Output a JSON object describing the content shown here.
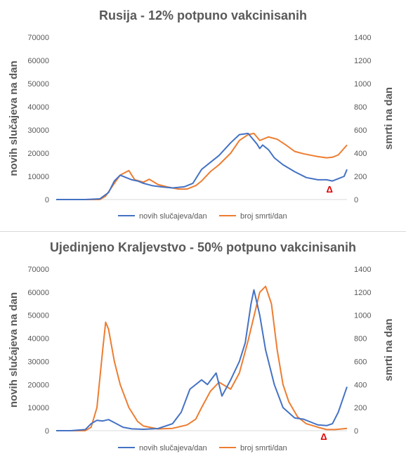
{
  "colors": {
    "cases": "#4472c4",
    "deaths": "#ed7d31",
    "marker": "#e00000",
    "text": "#595959"
  },
  "chart_data": [
    {
      "type": "line",
      "title": "Rusija - 12% potpuno vakcinisanih",
      "ylabel": "novih slučajeva na dan",
      "y2label": "smrti na dan",
      "ylim": [
        0,
        70000
      ],
      "y2lim": [
        0,
        1400
      ],
      "yticks": [
        "0",
        "10000",
        "20000",
        "30000",
        "40000",
        "50000",
        "60000",
        "70000"
      ],
      "y2ticks": [
        "0",
        "200",
        "400",
        "600",
        "800",
        "1000",
        "1200",
        "1400"
      ],
      "marker": "Δ",
      "legend": [
        "novih slučajeva/dan",
        "broj smrti/dan"
      ],
      "legend_position": "bottom",
      "series": [
        {
          "name": "novih slučajeva/dan",
          "axis": "left",
          "x": [
            0,
            0.05,
            0.1,
            0.15,
            0.18,
            0.2,
            0.22,
            0.24,
            0.26,
            0.28,
            0.3,
            0.33,
            0.36,
            0.4,
            0.44,
            0.47,
            0.5,
            0.53,
            0.56,
            0.6,
            0.63,
            0.66,
            0.69,
            0.7,
            0.71,
            0.73,
            0.75,
            0.78,
            0.82,
            0.86,
            0.9,
            0.93,
            0.95,
            0.97,
            0.99,
            1.0
          ],
          "y": [
            0,
            0,
            0,
            300,
            3000,
            8000,
            10500,
            9500,
            8500,
            8000,
            7000,
            6000,
            5500,
            5000,
            5500,
            7000,
            13000,
            16000,
            19000,
            24500,
            28000,
            28500,
            24000,
            22000,
            23500,
            21500,
            18000,
            15000,
            12000,
            9500,
            8500,
            8500,
            8000,
            9000,
            10000,
            13000
          ]
        },
        {
          "name": "broj smrti/dan",
          "axis": "right",
          "x": [
            0,
            0.05,
            0.1,
            0.15,
            0.17,
            0.2,
            0.22,
            0.25,
            0.27,
            0.3,
            0.32,
            0.35,
            0.38,
            0.42,
            0.45,
            0.48,
            0.5,
            0.53,
            0.56,
            0.6,
            0.63,
            0.66,
            0.68,
            0.7,
            0.73,
            0.76,
            0.79,
            0.82,
            0.85,
            0.88,
            0.9,
            0.93,
            0.95,
            0.97,
            1.0
          ],
          "y": [
            0,
            0,
            0,
            0,
            30,
            140,
            210,
            250,
            170,
            150,
            175,
            130,
            110,
            90,
            90,
            120,
            160,
            240,
            300,
            400,
            510,
            560,
            570,
            510,
            540,
            520,
            470,
            415,
            395,
            380,
            370,
            360,
            365,
            385,
            470
          ]
        }
      ]
    },
    {
      "type": "line",
      "title": "Ujedinjeno Kraljevstvo - 50% potpuno vakcinisanih",
      "ylabel": "novih slučajeva na dan",
      "y2label": "smrti na dan",
      "ylim": [
        0,
        70000
      ],
      "y2lim": [
        0,
        1400
      ],
      "yticks": [
        "0",
        "10000",
        "20000",
        "30000",
        "40000",
        "50000",
        "60000",
        "70000"
      ],
      "y2ticks": [
        "0",
        "200",
        "400",
        "600",
        "800",
        "1000",
        "1200",
        "1400"
      ],
      "marker": "Δ",
      "legend": [
        "novih slučajeva/dan",
        "broj smrti/dan"
      ],
      "legend_position": "bottom",
      "series": [
        {
          "name": "novih slučajeva/dan",
          "axis": "left",
          "x": [
            0,
            0.05,
            0.1,
            0.12,
            0.14,
            0.16,
            0.18,
            0.2,
            0.23,
            0.26,
            0.3,
            0.35,
            0.4,
            0.43,
            0.46,
            0.5,
            0.52,
            0.55,
            0.57,
            0.6,
            0.63,
            0.65,
            0.67,
            0.68,
            0.7,
            0.72,
            0.75,
            0.78,
            0.82,
            0.85,
            0.88,
            0.9,
            0.93,
            0.95,
            0.97,
            1.0
          ],
          "y": [
            0,
            0,
            500,
            3000,
            4500,
            4200,
            4800,
            3500,
            1500,
            800,
            600,
            900,
            3000,
            8000,
            18000,
            22000,
            20000,
            25000,
            15000,
            22000,
            30000,
            38000,
            55000,
            61000,
            50000,
            35000,
            20000,
            10000,
            5500,
            5000,
            3500,
            2500,
            2200,
            3000,
            8000,
            19000
          ]
        },
        {
          "name": "broj smrti/dan",
          "axis": "right",
          "x": [
            0,
            0.05,
            0.1,
            0.12,
            0.14,
            0.16,
            0.17,
            0.18,
            0.2,
            0.22,
            0.25,
            0.28,
            0.3,
            0.35,
            0.4,
            0.45,
            0.48,
            0.5,
            0.53,
            0.56,
            0.6,
            0.63,
            0.66,
            0.7,
            0.72,
            0.74,
            0.76,
            0.78,
            0.8,
            0.83,
            0.86,
            0.9,
            0.93,
            0.96,
            1.0
          ],
          "y": [
            0,
            0,
            0,
            30,
            200,
            700,
            940,
            880,
            600,
            400,
            200,
            80,
            40,
            15,
            20,
            50,
            100,
            200,
            340,
            420,
            360,
            500,
            780,
            1200,
            1250,
            1100,
            700,
            400,
            250,
            120,
            60,
            30,
            10,
            10,
            20
          ]
        }
      ]
    }
  ]
}
